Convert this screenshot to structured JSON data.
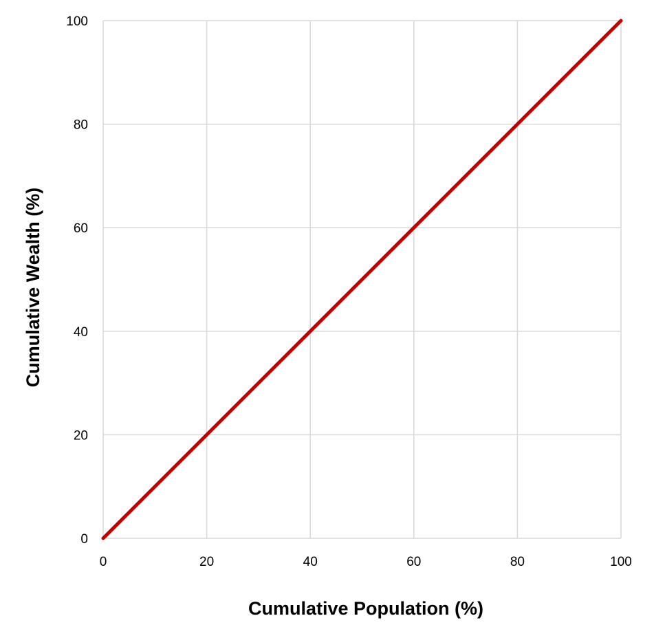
{
  "chart_data": {
    "type": "line",
    "title": "",
    "xlabel": "Cumulative Population (%)",
    "ylabel": "Cumulative Wealth (%)",
    "xlim": [
      0,
      100
    ],
    "ylim": [
      0,
      100
    ],
    "xticks": [
      0,
      20,
      40,
      60,
      80,
      100
    ],
    "yticks": [
      0,
      20,
      40,
      60,
      80,
      100
    ],
    "grid": true,
    "legend": "none",
    "series": [
      {
        "color": "#C00000",
        "x": [
          0,
          20,
          40,
          60,
          80,
          100
        ],
        "y": [
          0,
          20,
          40,
          60,
          80,
          100
        ]
      }
    ],
    "colors": {
      "line": "#C00000",
      "grid": "#D9D9D9",
      "text": "#000000"
    }
  }
}
